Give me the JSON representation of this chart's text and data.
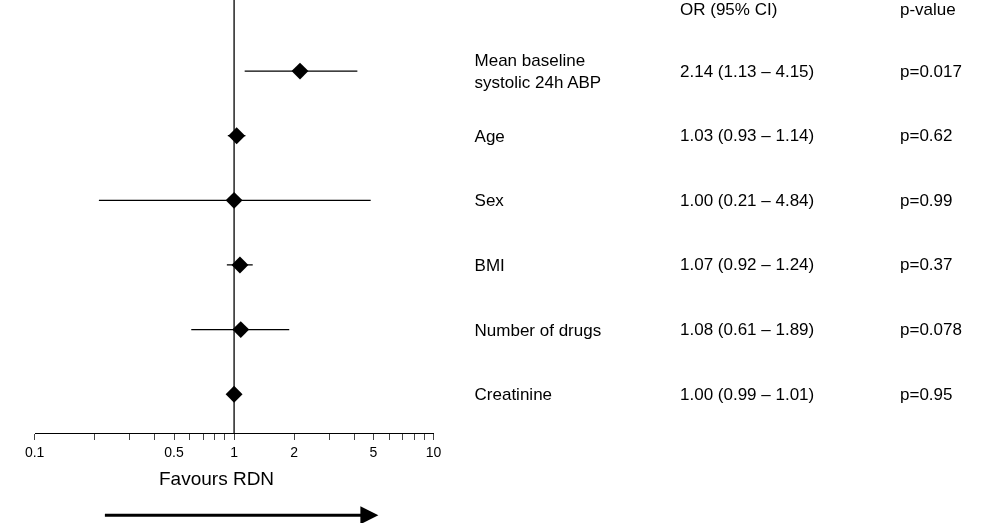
{
  "chart_data": {
    "type": "scatter",
    "orientation": "horizontal",
    "categories": [
      "Mean baseline\nsystolic 24h ABP",
      "Age",
      "Sex",
      "BMI",
      "Number of drugs",
      "Creatinine"
    ],
    "values": [
      2.14,
      1.03,
      1.0,
      1.07,
      1.08,
      1.0
    ],
    "errors": [
      [
        1.13,
        4.15
      ],
      [
        0.93,
        1.14
      ],
      [
        0.21,
        4.84
      ],
      [
        0.92,
        1.24
      ],
      [
        0.61,
        1.89
      ],
      [
        0.99,
        1.01
      ]
    ],
    "value_labels": [
      "2.14 (1.13 – 4.15)",
      "1.03 (0.93 – 1.14)",
      "1.00 (0.21 – 4.84)",
      "1.07 (0.92 – 1.24)",
      "1.08 (0.61 – 1.89)",
      "1.00 (0.99 – 1.01)"
    ],
    "color": "#000000",
    "marker": "diamond",
    "log": "x",
    "xlim": [
      0.1,
      10
    ],
    "xticks": [
      0.1,
      {
        "value": 0.2,
        "label": null
      },
      {
        "value": 0.3,
        "label": null
      },
      {
        "value": 0.4,
        "label": null
      },
      0.5,
      {
        "value": 0.6,
        "label": null
      },
      {
        "value": 0.7,
        "label": null
      },
      {
        "value": 0.8,
        "label": null
      },
      {
        "value": 0.9,
        "label": null
      },
      1,
      2,
      {
        "value": 3,
        "label": null
      },
      {
        "value": 4,
        "label": null
      },
      5,
      {
        "value": 6,
        "label": null
      },
      {
        "value": 7,
        "label": null
      },
      {
        "value": 8,
        "label": null
      },
      {
        "value": 9,
        "label": null
      },
      10
    ],
    "ref_lines": [
      {
        "axis": "x",
        "value": 1,
        "color": "#000000"
      }
    ],
    "annotations": [
      "OR (95% CI)",
      "p-value",
      "Favours RDN",
      "p=0.017",
      "p=0.62",
      "p=0.99",
      "p=0.37",
      "p=0.078",
      "p=0.95"
    ]
  }
}
